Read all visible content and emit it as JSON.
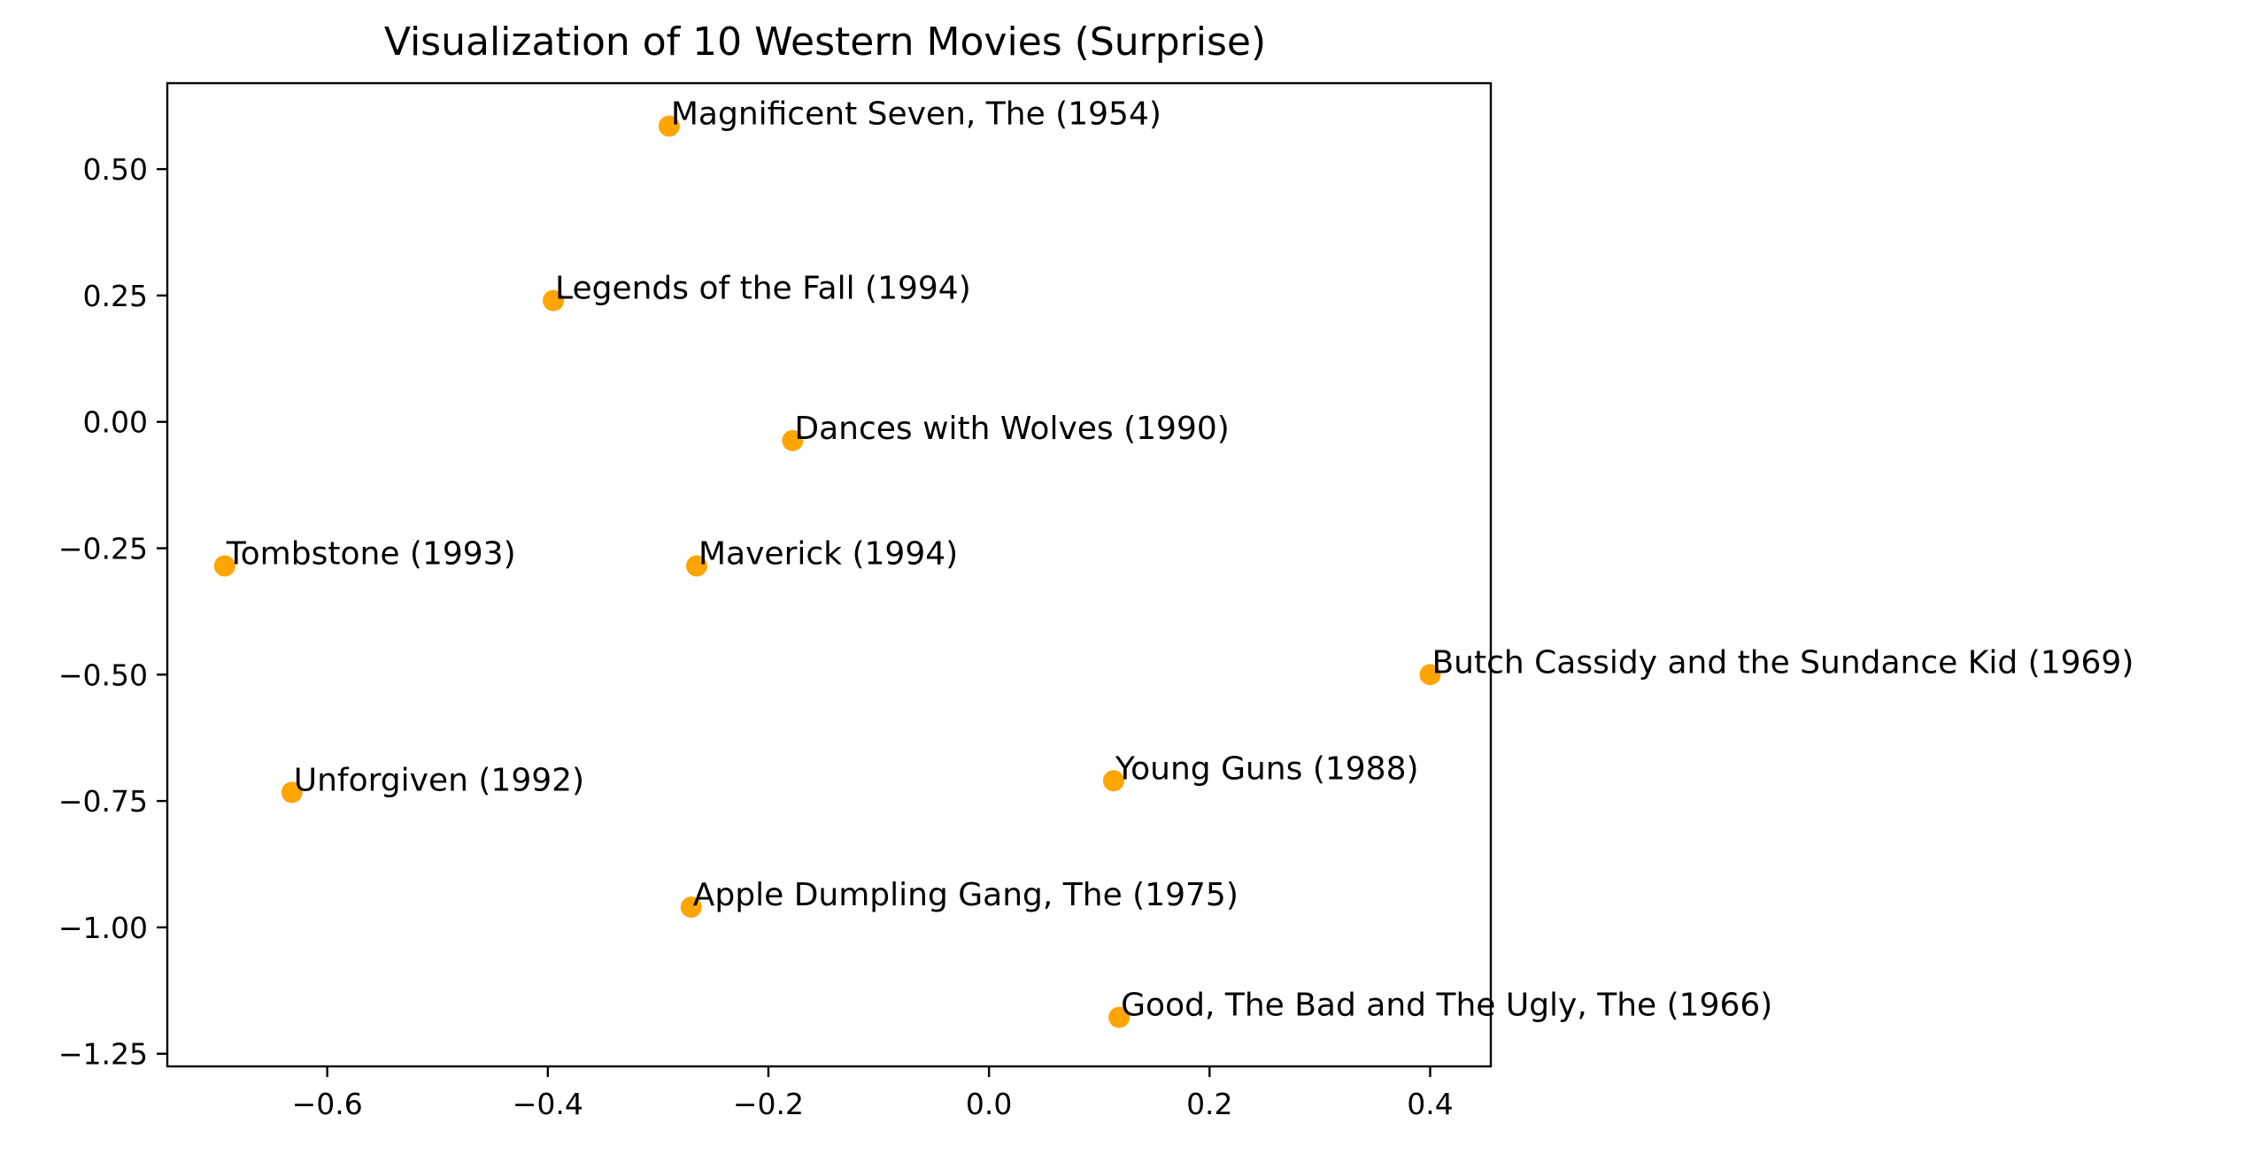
{
  "chart_data": {
    "type": "scatter",
    "title": "Visualization of 10 Western Movies (Surprise)",
    "xlabel": "",
    "ylabel": "",
    "xlim": [
      -0.745,
      0.455
    ],
    "ylim": [
      -1.275,
      0.67
    ],
    "x_ticks": [
      -0.6,
      -0.4,
      -0.2,
      0.0,
      0.2,
      0.4
    ],
    "x_tick_labels": [
      "−0.6",
      "−0.4",
      "−0.2",
      "0.0",
      "0.2",
      "0.4"
    ],
    "y_ticks": [
      0.5,
      0.25,
      0.0,
      -0.25,
      -0.5,
      -0.75,
      -1.0,
      -1.25
    ],
    "y_tick_labels": [
      "0.50",
      "0.25",
      "0.00",
      "−0.25",
      "−0.50",
      "−0.75",
      "−1.00",
      "−1.25"
    ],
    "grid": false,
    "marker_color": "#ffa500",
    "points": [
      {
        "label": "Magnificent Seven, The (1954)",
        "x": -0.29,
        "y": 0.585
      },
      {
        "label": "Legends of the Fall (1994)",
        "x": -0.395,
        "y": 0.24
      },
      {
        "label": "Dances with Wolves (1990)",
        "x": -0.178,
        "y": -0.037
      },
      {
        "label": "Tombstone (1993)",
        "x": -0.693,
        "y": -0.285
      },
      {
        "label": "Maverick (1994)",
        "x": -0.265,
        "y": -0.285
      },
      {
        "label": "Butch Cassidy and the Sundance Kid (1969)",
        "x": 0.4,
        "y": -0.5
      },
      {
        "label": "Young Guns (1988)",
        "x": 0.113,
        "y": -0.71
      },
      {
        "label": "Unforgiven (1992)",
        "x": -0.632,
        "y": -0.733
      },
      {
        "label": "Apple Dumpling Gang, The (1975)",
        "x": -0.27,
        "y": -0.96
      },
      {
        "label": "Good, The Bad and The Ugly, The (1966)",
        "x": 0.118,
        "y": -1.178
      }
    ]
  }
}
